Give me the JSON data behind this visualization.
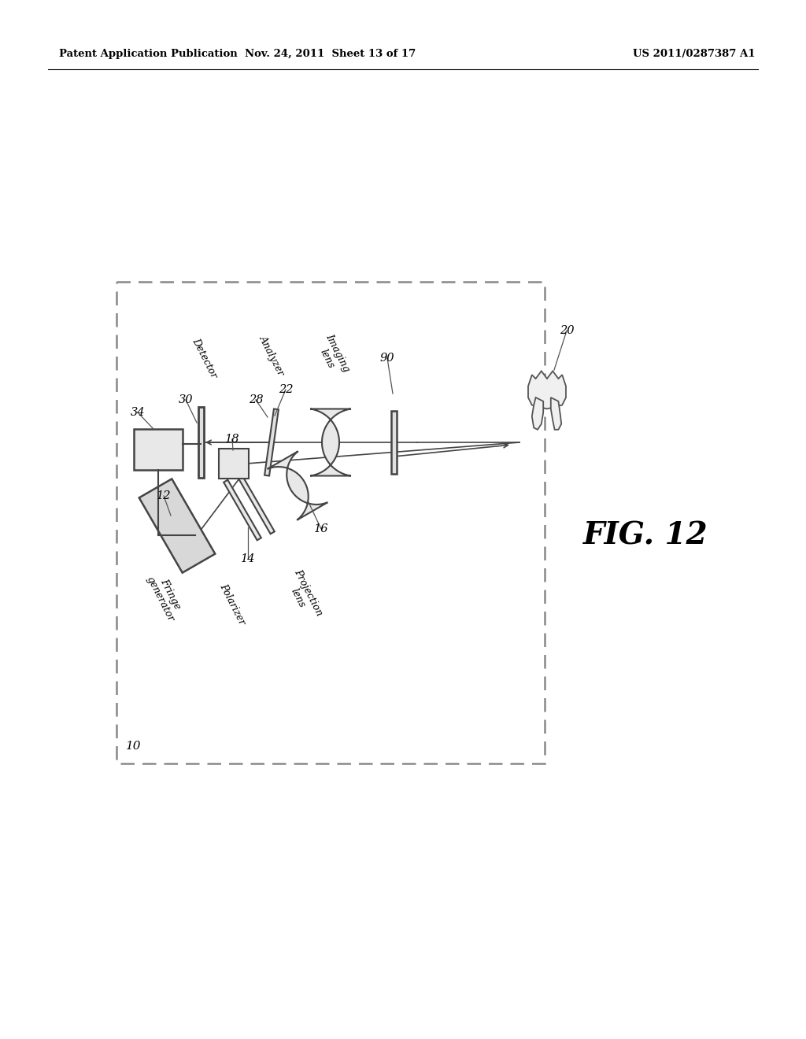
{
  "bg_color": "#ffffff",
  "header_left": "Patent Application Publication",
  "header_mid": "Nov. 24, 2011  Sheet 13 of 17",
  "header_right": "US 2011/0287387 A1",
  "fig_label": "FIG. 12"
}
